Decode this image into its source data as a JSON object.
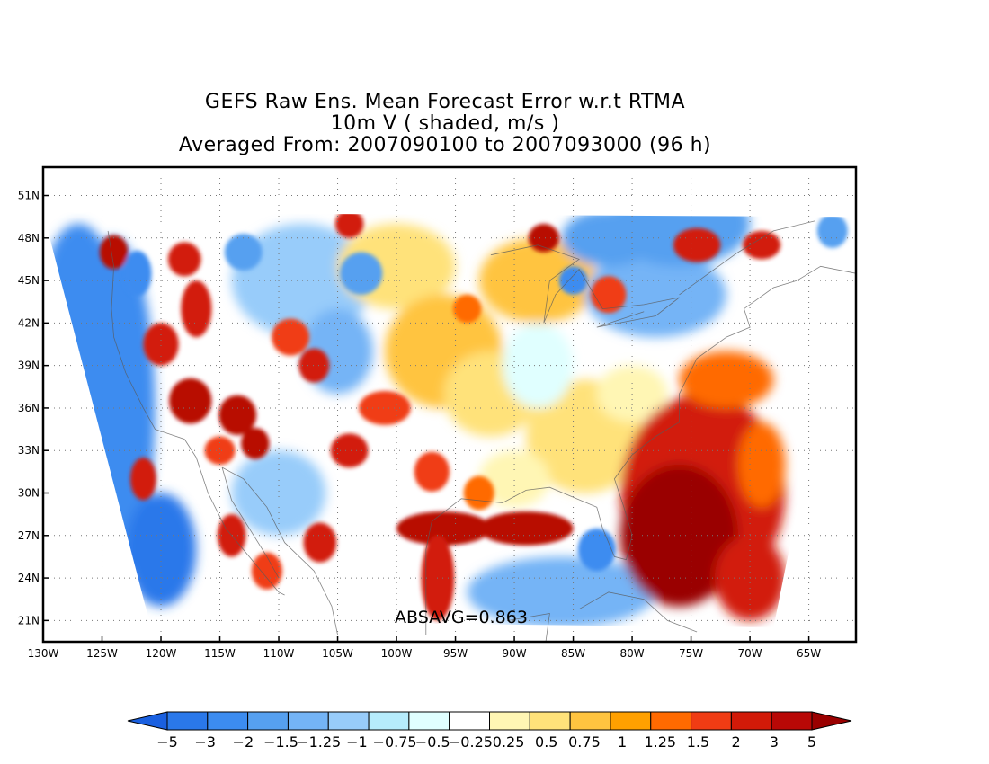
{
  "title": {
    "line1": "GEFS Raw Ens. Mean Forecast Error w.r.t RTMA",
    "line2": "10m V ( shaded, m/s )",
    "line3": "Averaged From: 2007090100 to 2007093000 (96 h)"
  },
  "annotation": "ABSAVG=0.863",
  "map": {
    "lon_range": [
      -130,
      -61
    ],
    "lat_range": [
      19.5,
      53
    ],
    "lat_ticks": [
      {
        "v": 51,
        "label": "51N"
      },
      {
        "v": 48,
        "label": "48N"
      },
      {
        "v": 45,
        "label": "45N"
      },
      {
        "v": 42,
        "label": "42N"
      },
      {
        "v": 39,
        "label": "39N"
      },
      {
        "v": 36,
        "label": "36N"
      },
      {
        "v": 33,
        "label": "33N"
      },
      {
        "v": 30,
        "label": "30N"
      },
      {
        "v": 27,
        "label": "27N"
      },
      {
        "v": 24,
        "label": "24N"
      },
      {
        "v": 21,
        "label": "21N"
      }
    ],
    "lon_ticks": [
      {
        "v": -130,
        "label": "130W"
      },
      {
        "v": -125,
        "label": "125W"
      },
      {
        "v": -120,
        "label": "120W"
      },
      {
        "v": -115,
        "label": "115W"
      },
      {
        "v": -110,
        "label": "110W"
      },
      {
        "v": -105,
        "label": "105W"
      },
      {
        "v": -100,
        "label": "100W"
      },
      {
        "v": -95,
        "label": "95W"
      },
      {
        "v": -90,
        "label": "90W"
      },
      {
        "v": -85,
        "label": "85W"
      },
      {
        "v": -80,
        "label": "80W"
      },
      {
        "v": -75,
        "label": "75W"
      },
      {
        "v": -70,
        "label": "70W"
      },
      {
        "v": -65,
        "label": "65W"
      }
    ],
    "grid": true,
    "domain_corners": [
      [
        -130,
        49.8
      ],
      [
        -61,
        49.5
      ],
      [
        -68,
        20.5
      ],
      [
        -121,
        21
      ]
    ]
  },
  "colorbar": {
    "labels": [
      "-5",
      "-3",
      "-2",
      "-1.5",
      "-1.25",
      "-1",
      "-0.75",
      "-0.5",
      "-0.25",
      "0.25",
      "0.5",
      "0.75",
      "1",
      "1.25",
      "1.5",
      "2",
      "3",
      "5"
    ],
    "colors": [
      "#1a60e0",
      "#2a78ea",
      "#3c8cf0",
      "#56a0f0",
      "#74b4f6",
      "#98ccfa",
      "#b6ecfc",
      "#e0ffff",
      "#ffffff",
      "#fff6b4",
      "#ffe27a",
      "#ffc440",
      "#ffa000",
      "#ff6a00",
      "#f03c14",
      "#d21a08",
      "#b80806",
      "#9a0000"
    ]
  }
}
